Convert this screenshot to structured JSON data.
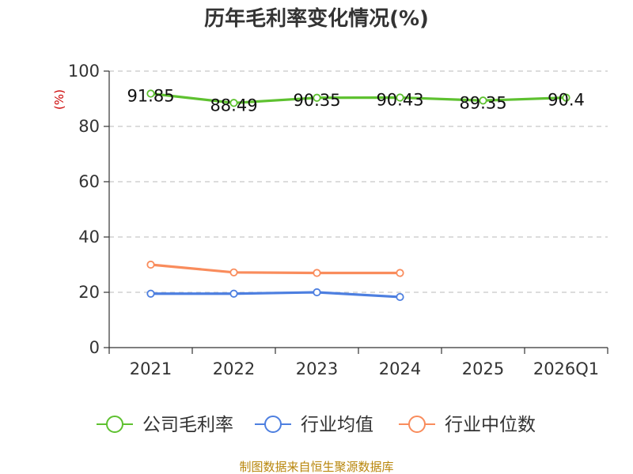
{
  "title": "历年毛利率变化情况(%)",
  "unit_label": "(%)",
  "source": "制图数据来自恒生聚源数据库",
  "chart_data": {
    "type": "line",
    "title": "历年毛利率变化情况(%)",
    "ylabel": "(%)",
    "xlabel": "",
    "categories": [
      "2021",
      "2022",
      "2023",
      "2024",
      "2025",
      "2026Q1"
    ],
    "ylim": [
      0,
      100
    ],
    "yticks": [
      0,
      20,
      40,
      60,
      80,
      100
    ],
    "grid": true,
    "legend": "bottom",
    "series": [
      {
        "name": "公司毛利率",
        "color": "#5ec130",
        "values": [
          91.85,
          88.49,
          90.35,
          90.43,
          89.35,
          90.4
        ],
        "labels": [
          "91.85",
          "88.49",
          "90.35",
          "90.43",
          "89.35",
          "90.4"
        ]
      },
      {
        "name": "行业均值",
        "color": "#4d7fe0",
        "values": [
          19.5,
          19.5,
          20.0,
          18.3,
          null,
          null
        ]
      },
      {
        "name": "行业中位数",
        "color": "#f98c5c",
        "values": [
          30.0,
          27.2,
          27.0,
          27.0,
          null,
          null
        ]
      }
    ]
  }
}
